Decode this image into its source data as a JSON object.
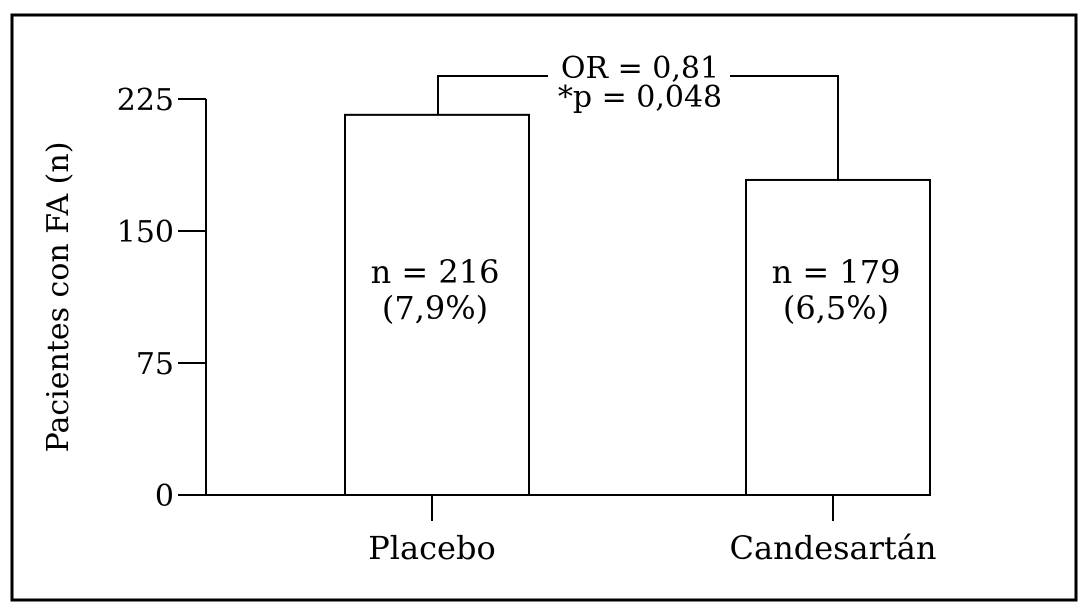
{
  "chart_data": {
    "type": "bar",
    "categories": [
      "Placebo",
      "Candesartán"
    ],
    "values": [
      216,
      179
    ],
    "data_labels": [
      [
        "n = 216",
        "(7,9%)"
      ],
      [
        "n = 179",
        "(6,5%)"
      ]
    ],
    "title": "",
    "xlabel": "",
    "ylabel": "Pacientes con FA (n)",
    "ylim": [
      0,
      225
    ],
    "yticks": [
      0,
      75,
      150,
      225
    ],
    "grid": false,
    "legend": "none",
    "annotation": {
      "lines": [
        "OR = 0,81",
        "*p = 0,048"
      ],
      "connects": [
        "Placebo",
        "Candesartán"
      ]
    },
    "colors": {
      "bar_fill": "#ffffff",
      "stroke": "#000000"
    }
  }
}
